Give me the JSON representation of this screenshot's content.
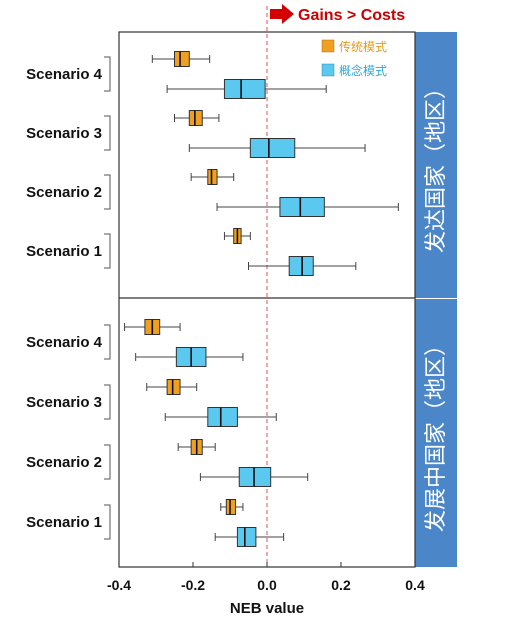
{
  "chart_data": {
    "type": "box",
    "xlabel": "NEB value",
    "xlim": [
      -0.4,
      0.4
    ],
    "xticks": [
      "-0.4",
      "-0.2",
      "0.0",
      "0.2",
      "0.4"
    ],
    "xtick_values": [
      -0.4,
      -0.2,
      0.0,
      0.2,
      0.4
    ],
    "annotation": "Gains > Costs",
    "reference_line": 0.0,
    "legend": [
      {
        "name": "传统模式",
        "color": "#f0a020"
      },
      {
        "name": "概念模式",
        "color": "#5bc8f0"
      }
    ],
    "panels": [
      {
        "label": "发达国家（地区）",
        "categories": [
          "Scenario 4",
          "Scenario 3",
          "Scenario 2",
          "Scenario 1"
        ],
        "series": [
          {
            "name": "传统模式",
            "boxes": [
              {
                "min": -0.31,
                "q1": -0.25,
                "median": -0.235,
                "q3": -0.21,
                "max": -0.155
              },
              {
                "min": -0.25,
                "q1": -0.21,
                "median": -0.195,
                "q3": -0.175,
                "max": -0.13
              },
              {
                "min": -0.205,
                "q1": -0.16,
                "median": -0.15,
                "q3": -0.135,
                "max": -0.09
              },
              {
                "min": -0.115,
                "q1": -0.09,
                "median": -0.08,
                "q3": -0.07,
                "max": -0.045
              }
            ]
          },
          {
            "name": "概念模式",
            "boxes": [
              {
                "min": -0.27,
                "q1": -0.115,
                "median": -0.07,
                "q3": -0.005,
                "max": 0.16
              },
              {
                "min": -0.21,
                "q1": -0.045,
                "median": 0.005,
                "q3": 0.075,
                "max": 0.265
              },
              {
                "min": -0.135,
                "q1": 0.035,
                "median": 0.09,
                "q3": 0.155,
                "max": 0.355
              },
              {
                "min": -0.05,
                "q1": 0.06,
                "median": 0.095,
                "q3": 0.125,
                "max": 0.24
              }
            ]
          }
        ]
      },
      {
        "label": "发展中国家（地区）",
        "categories": [
          "Scenario 4",
          "Scenario 3",
          "Scenario 2",
          "Scenario 1"
        ],
        "series": [
          {
            "name": "传统模式",
            "boxes": [
              {
                "min": -0.385,
                "q1": -0.33,
                "median": -0.31,
                "q3": -0.29,
                "max": -0.235
              },
              {
                "min": -0.325,
                "q1": -0.27,
                "median": -0.255,
                "q3": -0.235,
                "max": -0.19
              },
              {
                "min": -0.24,
                "q1": -0.205,
                "median": -0.19,
                "q3": -0.175,
                "max": -0.14
              },
              {
                "min": -0.125,
                "q1": -0.11,
                "median": -0.1,
                "q3": -0.085,
                "max": -0.065
              }
            ]
          },
          {
            "name": "概念模式",
            "boxes": [
              {
                "min": -0.355,
                "q1": -0.245,
                "median": -0.205,
                "q3": -0.165,
                "max": -0.065
              },
              {
                "min": -0.275,
                "q1": -0.16,
                "median": -0.125,
                "q3": -0.08,
                "max": 0.025
              },
              {
                "min": -0.18,
                "q1": -0.075,
                "median": -0.035,
                "q3": 0.01,
                "max": 0.11
              },
              {
                "min": -0.14,
                "q1": -0.08,
                "median": -0.06,
                "q3": -0.03,
                "max": 0.045
              }
            ]
          }
        ]
      }
    ]
  }
}
